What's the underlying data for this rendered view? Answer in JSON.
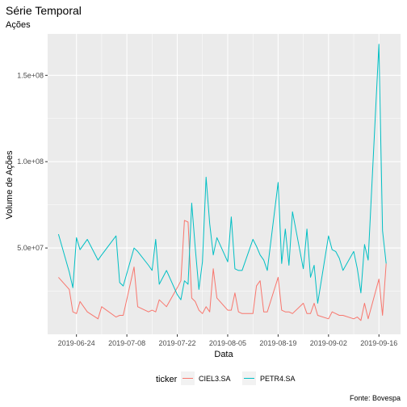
{
  "chart_data": {
    "type": "line",
    "title": "Série Temporal",
    "subtitle": "Ações",
    "xlabel": "Data",
    "ylabel": "Volume de Ações",
    "caption": "Fonte: Bovespa",
    "legend": {
      "title": "ticker",
      "position": "bottom"
    },
    "xlim": [
      "2019-06-16",
      "2019-09-22"
    ],
    "ylim": [
      0,
      174000000
    ],
    "x_ticks": [
      "2019-06-24",
      "2019-07-08",
      "2019-07-22",
      "2019-08-05",
      "2019-08-19",
      "2019-09-02",
      "2019-09-16"
    ],
    "y_ticks": [
      {
        "value": 50000000,
        "label": "5.0e+07"
      },
      {
        "value": 100000000,
        "label": "1.0e+08"
      },
      {
        "value": 150000000,
        "label": "1.5e+08"
      }
    ],
    "grid": true,
    "background": "#EBEBEB",
    "x": [
      "2019-06-19",
      "2019-06-22",
      "2019-06-23",
      "2019-06-24",
      "2019-06-25",
      "2019-06-27",
      "2019-06-30",
      "2019-07-01",
      "2019-07-05",
      "2019-07-06",
      "2019-07-07",
      "2019-07-10",
      "2019-07-11",
      "2019-07-14",
      "2019-07-15",
      "2019-07-16",
      "2019-07-17",
      "2019-07-19",
      "2019-07-22",
      "2019-07-23",
      "2019-07-24",
      "2019-07-25",
      "2019-07-26",
      "2019-07-27",
      "2019-07-28",
      "2019-07-29",
      "2019-07-30",
      "2019-07-31",
      "2019-08-01",
      "2019-08-02",
      "2019-08-05",
      "2019-08-06",
      "2019-08-07",
      "2019-08-08",
      "2019-08-09",
      "2019-08-12",
      "2019-08-13",
      "2019-08-14",
      "2019-08-15",
      "2019-08-16",
      "2019-08-19",
      "2019-08-20",
      "2019-08-21",
      "2019-08-22",
      "2019-08-23",
      "2019-08-26",
      "2019-08-27",
      "2019-08-28",
      "2019-08-29",
      "2019-08-30",
      "2019-09-02",
      "2019-09-03",
      "2019-09-04",
      "2019-09-05",
      "2019-09-06",
      "2019-09-09",
      "2019-09-10",
      "2019-09-11",
      "2019-09-12",
      "2019-09-13",
      "2019-09-16",
      "2019-09-17",
      "2019-09-18"
    ],
    "series": [
      {
        "name": "CIEL3.SA",
        "color": "#F8766D",
        "values": [
          33000000,
          26000000,
          13000000,
          12000000,
          19000000,
          13000000,
          9000000,
          16000000,
          10000000,
          11000000,
          11000000,
          39000000,
          16000000,
          13000000,
          14000000,
          13000000,
          20000000,
          16000000,
          27000000,
          31000000,
          66000000,
          65000000,
          21000000,
          19000000,
          14000000,
          12000000,
          16000000,
          13000000,
          38000000,
          21000000,
          14000000,
          14000000,
          24000000,
          13000000,
          12000000,
          12000000,
          28000000,
          31000000,
          13000000,
          13000000,
          33000000,
          14000000,
          13000000,
          13000000,
          12000000,
          18000000,
          12000000,
          12000000,
          18000000,
          11000000,
          9000000,
          13000000,
          12000000,
          11000000,
          11000000,
          9000000,
          10000000,
          8000000,
          18000000,
          9000000,
          32000000,
          11000000,
          41000000
        ]
      },
      {
        "name": "PETR4.SA",
        "color": "#00BFC4",
        "values": [
          58000000,
          36000000,
          27000000,
          56000000,
          49000000,
          55000000,
          43000000,
          46000000,
          57000000,
          30000000,
          28000000,
          50000000,
          48000000,
          40000000,
          37000000,
          55000000,
          29000000,
          37000000,
          23000000,
          20000000,
          31000000,
          29000000,
          76000000,
          50000000,
          26000000,
          42000000,
          91000000,
          64000000,
          46000000,
          56000000,
          42000000,
          68000000,
          38000000,
          37000000,
          37000000,
          55000000,
          51000000,
          46000000,
          43000000,
          37000000,
          88000000,
          41000000,
          61000000,
          40000000,
          71000000,
          38000000,
          61000000,
          33000000,
          40000000,
          18000000,
          57000000,
          49000000,
          48000000,
          44000000,
          37000000,
          48000000,
          38000000,
          24000000,
          52000000,
          43000000,
          168000000,
          60000000,
          41000000
        ]
      }
    ]
  }
}
